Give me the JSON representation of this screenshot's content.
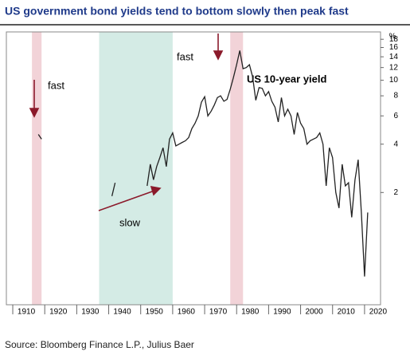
{
  "chart_data": {
    "type": "line",
    "title": "US government bond yields tend to bottom slowly then peak fast",
    "source": "Source: Bloomberg Finance L.P., Julius Baer",
    "y_unit": "%",
    "annotations": [
      "fast",
      "fast",
      "slow",
      "US 10-year yield"
    ],
    "shaded_periods": [
      {
        "color": "#f2d3d8",
        "range": [
          1916,
          1919
        ]
      },
      {
        "color": "#d4ebe5",
        "range": [
          1937,
          1960
        ]
      },
      {
        "color": "#f2d3d8",
        "range": [
          1978,
          1982
        ]
      }
    ],
    "log_scale": true,
    "xlim": [
      1908,
      2025
    ],
    "xticks": [
      1910,
      1920,
      1930,
      1940,
      1950,
      1960,
      1970,
      1980,
      1990,
      2000,
      2010,
      2020
    ],
    "ylim": [
      0.4,
      20
    ],
    "yticks": [
      2,
      4,
      6,
      8,
      10,
      12,
      14,
      16,
      18
    ],
    "series": [
      {
        "name": "US 10-year yield",
        "color": "#222222",
        "x": [
          1918,
          1919,
          1930,
          1941,
          1942,
          1945,
          1952,
          1953,
          1954,
          1955,
          1956,
          1957,
          1958,
          1959,
          1960,
          1961,
          1962,
          1963,
          1964,
          1965,
          1966,
          1967,
          1968,
          1969,
          1970,
          1971,
          1972,
          1973,
          1974,
          1975,
          1976,
          1977,
          1978,
          1979,
          1980,
          1981,
          1982,
          1983,
          1984,
          1985,
          1986,
          1987,
          1988,
          1989,
          1990,
          1991,
          1992,
          1993,
          1994,
          1995,
          1996,
          1997,
          1998,
          1999,
          2000,
          2001,
          2002,
          2003,
          2004,
          2005,
          2006,
          2007,
          2008,
          2009,
          2010,
          2011,
          2012,
          2013,
          2014,
          2015,
          2016,
          2017,
          2018,
          2019,
          2020,
          2021
        ],
        "values": [
          4.6,
          4.3,
          null,
          1.9,
          2.3,
          null,
          2.2,
          3.0,
          2.4,
          2.9,
          3.3,
          3.8,
          2.9,
          4.3,
          4.7,
          3.9,
          4.0,
          4.1,
          4.2,
          4.4,
          5.0,
          5.4,
          6.0,
          7.3,
          7.9,
          6.0,
          6.4,
          7.0,
          7.8,
          8.0,
          7.4,
          7.6,
          8.8,
          10.4,
          12.5,
          15.3,
          11.8,
          12.0,
          12.5,
          10.5,
          7.5,
          9.0,
          8.9,
          8.0,
          8.5,
          7.4,
          6.8,
          5.5,
          7.8,
          6.0,
          6.6,
          6.0,
          4.6,
          6.3,
          5.4,
          5.0,
          4.0,
          4.2,
          4.3,
          4.4,
          4.7,
          4.0,
          2.2,
          3.8,
          3.3,
          2.0,
          1.6,
          3.0,
          2.2,
          2.3,
          1.4,
          2.4,
          3.2,
          1.5,
          0.6,
          1.5
        ]
      }
    ]
  }
}
